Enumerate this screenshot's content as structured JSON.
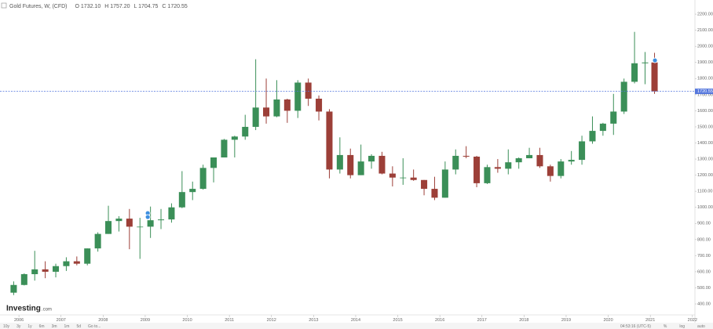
{
  "chart_data": {
    "type": "candlestick",
    "title": "Gold Futures, W, (CFD)",
    "ohlc_header": [
      "O 1732.10",
      "H 1757.20",
      "L 1704.75",
      "C 1720.55"
    ],
    "up_color": "#3b8f58",
    "down_color": "#9c3f38",
    "x": [
      2005.875,
      2006.125,
      2006.375,
      2006.625,
      2006.875,
      2007.125,
      2007.375,
      2007.625,
      2007.875,
      2008.125,
      2008.375,
      2008.625,
      2008.875,
      2009.125,
      2009.375,
      2009.625,
      2009.875,
      2010.125,
      2010.375,
      2010.625,
      2010.875,
      2011.125,
      2011.375,
      2011.625,
      2011.875,
      2012.125,
      2012.375,
      2012.625,
      2012.875,
      2013.125,
      2013.375,
      2013.625,
      2013.875,
      2014.125,
      2014.375,
      2014.625,
      2014.875,
      2015.125,
      2015.375,
      2015.625,
      2015.875,
      2016.125,
      2016.375,
      2016.625,
      2016.875,
      2017.125,
      2017.375,
      2017.625,
      2017.875,
      2018.125,
      2018.375,
      2018.625,
      2018.875,
      2019.125,
      2019.375,
      2019.625,
      2019.875,
      2020.125,
      2020.375,
      2020.625,
      2020.875,
      2021.1
    ],
    "open": [
      470,
      518,
      585,
      615,
      600,
      635,
      665,
      650,
      745,
      835,
      915,
      930,
      880,
      880,
      920,
      925,
      1000,
      1095,
      1115,
      1245,
      1310,
      1420,
      1440,
      1500,
      1620,
      1565,
      1670,
      1600,
      1775,
      1675,
      1595,
      1235,
      1325,
      1200,
      1285,
      1320,
      1210,
      1185,
      1185,
      1170,
      1115,
      1060,
      1235,
      1320,
      1315,
      1150,
      1250,
      1240,
      1280,
      1305,
      1325,
      1255,
      1195,
      1285,
      1295,
      1410,
      1475,
      1520,
      1595,
      1780,
      1895,
      1900
    ],
    "high": [
      540,
      590,
      730,
      665,
      650,
      690,
      695,
      745,
      845,
      1010,
      945,
      990,
      935,
      1005,
      990,
      1025,
      1225,
      1160,
      1265,
      1310,
      1425,
      1445,
      1575,
      1920,
      1800,
      1790,
      1675,
      1790,
      1800,
      1695,
      1610,
      1435,
      1365,
      1390,
      1330,
      1345,
      1255,
      1305,
      1235,
      1170,
      1190,
      1285,
      1360,
      1380,
      1320,
      1265,
      1300,
      1360,
      1310,
      1370,
      1370,
      1265,
      1300,
      1350,
      1445,
      1565,
      1525,
      1705,
      1800,
      2090,
      1965,
      1960
    ],
    "low": [
      455,
      515,
      545,
      560,
      565,
      605,
      640,
      640,
      725,
      835,
      850,
      740,
      680,
      810,
      865,
      905,
      995,
      1045,
      1110,
      1155,
      1310,
      1310,
      1420,
      1480,
      1520,
      1560,
      1525,
      1555,
      1630,
      1540,
      1180,
      1210,
      1180,
      1200,
      1240,
      1205,
      1130,
      1140,
      1165,
      1075,
      1045,
      1060,
      1205,
      1305,
      1125,
      1145,
      1215,
      1205,
      1240,
      1305,
      1245,
      1160,
      1180,
      1265,
      1265,
      1395,
      1445,
      1450,
      1580,
      1770,
      1765,
      1705
    ],
    "close": [
      518,
      585,
      615,
      600,
      635,
      665,
      650,
      745,
      835,
      915,
      930,
      880,
      880,
      920,
      925,
      1000,
      1095,
      1115,
      1245,
      1310,
      1420,
      1440,
      1500,
      1620,
      1565,
      1670,
      1600,
      1775,
      1675,
      1595,
      1235,
      1325,
      1200,
      1285,
      1320,
      1210,
      1185,
      1185,
      1170,
      1115,
      1060,
      1235,
      1320,
      1315,
      1150,
      1250,
      1240,
      1280,
      1305,
      1325,
      1255,
      1195,
      1285,
      1295,
      1410,
      1475,
      1520,
      1595,
      1780,
      1895,
      1900,
      1720.55
    ],
    "events": {
      "x": [
        2009.06,
        2009.06,
        2021.11
      ],
      "y": [
        964,
        940,
        1913
      ],
      "color": "#3d8fe0"
    },
    "price_line": 1720.55,
    "price_line_color": "#5577dd",
    "xlim": [
      2005.55,
      2022.06
    ],
    "xticks": [
      2006,
      2007,
      2008,
      2009,
      2010,
      2011,
      2012,
      2013,
      2014,
      2015,
      2016,
      2017,
      2018,
      2019,
      2020,
      2021,
      2022
    ],
    "ylim": [
      332,
      2288
    ],
    "yticks": [
      {
        "value": 400,
        "label": "400.00"
      },
      {
        "value": 500,
        "label": "500.00"
      },
      {
        "value": 600,
        "label": "600.00"
      },
      {
        "value": 700,
        "label": "700.00"
      },
      {
        "value": 800,
        "label": "800.00"
      },
      {
        "value": 900,
        "label": "900.00"
      },
      {
        "value": 1000,
        "label": "1000.00"
      },
      {
        "value": 1100,
        "label": "1100.00"
      },
      {
        "value": 1200,
        "label": "1200.00"
      },
      {
        "value": 1300,
        "label": "1300.00"
      },
      {
        "value": 1400,
        "label": "1400.00"
      },
      {
        "value": 1500,
        "label": "1500.00"
      },
      {
        "value": 1600,
        "label": "1600.00"
      },
      {
        "value": 1700,
        "label": "1700.00"
      },
      {
        "value": 1800,
        "label": "1800.00"
      },
      {
        "value": 1900,
        "label": "1900.00"
      },
      {
        "value": 2000,
        "label": "2000.00"
      },
      {
        "value": 2100,
        "label": "2100.00"
      },
      {
        "value": 2200,
        "label": "2200.00"
      }
    ],
    "grid": false,
    "watermark": [
      "Investing",
      ".com"
    ],
    "toolbar_left": [
      "10y",
      "3y",
      "1y",
      "6m",
      "3m",
      "1m",
      "5d",
      "Go to..."
    ],
    "toolbar_right": [
      "04:53:16 (UTC-5)",
      "%",
      "log",
      "auto"
    ]
  }
}
